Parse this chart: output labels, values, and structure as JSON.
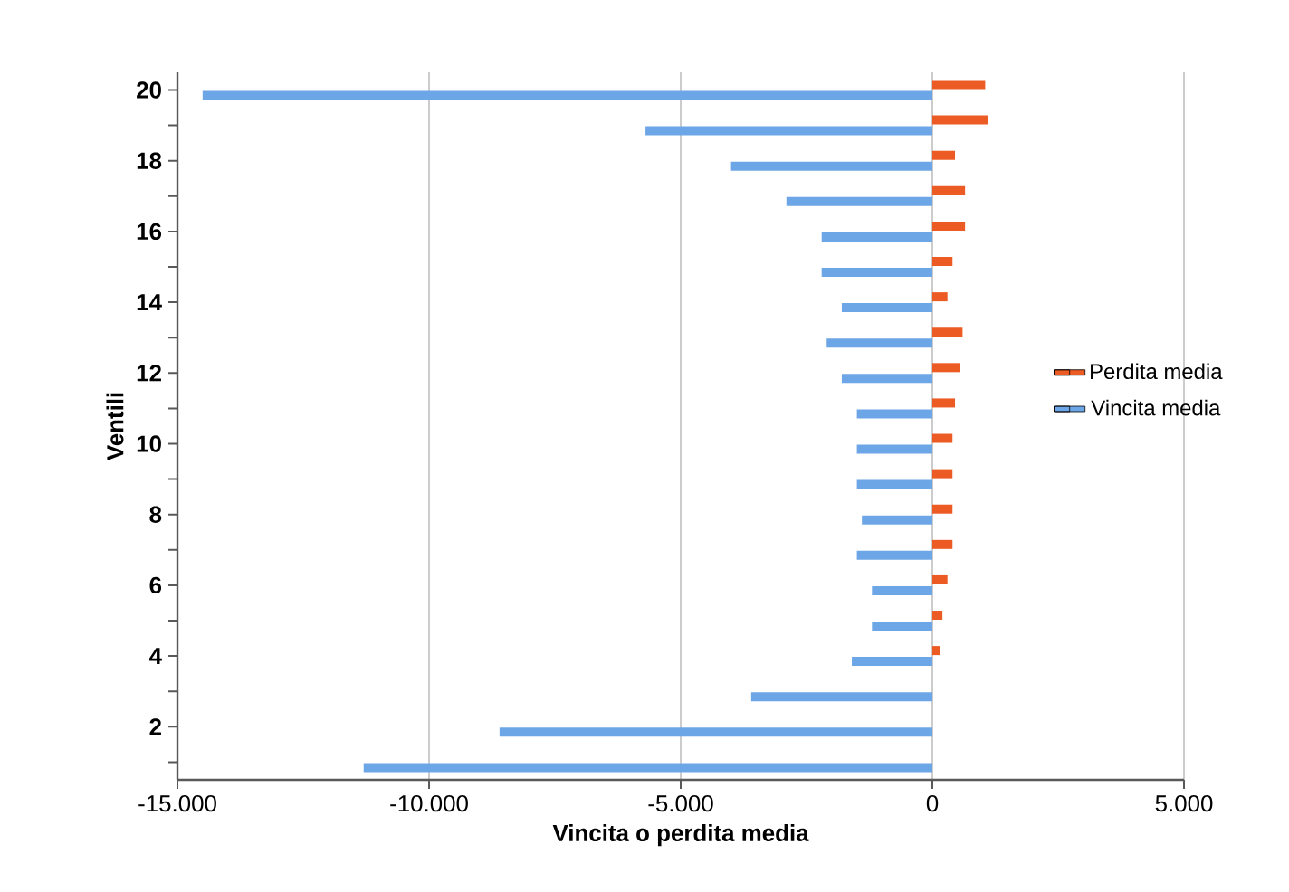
{
  "chart_data": {
    "type": "bar",
    "orientation": "horizontal",
    "xlabel": "Vincita o perdita media",
    "ylabel": "Ventili",
    "categories": [
      "20",
      null,
      "18",
      null,
      "16",
      null,
      "14",
      null,
      "12",
      null,
      "10",
      null,
      "8",
      null,
      "6",
      null,
      "4",
      null,
      "2",
      null
    ],
    "series": [
      {
        "name": "Perdita media",
        "color": "#ed5b24",
        "values": [
          1050,
          1100,
          450,
          650,
          650,
          400,
          300,
          600,
          550,
          450,
          400,
          400,
          400,
          400,
          300,
          200,
          150,
          null,
          null,
          null
        ]
      },
      {
        "name": "Vincita media",
        "color": "#6ca6e6",
        "values": [
          -14500,
          -5700,
          -4000,
          -2900,
          -2200,
          -2200,
          -1800,
          -2100,
          -1800,
          -1500,
          -1500,
          -1500,
          -1400,
          -1500,
          -1200,
          -1200,
          -1600,
          -3600,
          -8600,
          -11300
        ]
      }
    ],
    "xlim": [
      -15000,
      5000
    ],
    "xticks": [
      {
        "value": -15000,
        "label": "-15.000"
      },
      {
        "value": -10000,
        "label": "-10.000"
      },
      {
        "value": -5000,
        "label": "-5.000"
      },
      0,
      {
        "value": 5000,
        "label": "5.000"
      }
    ],
    "grid": "x",
    "legend": "right"
  }
}
